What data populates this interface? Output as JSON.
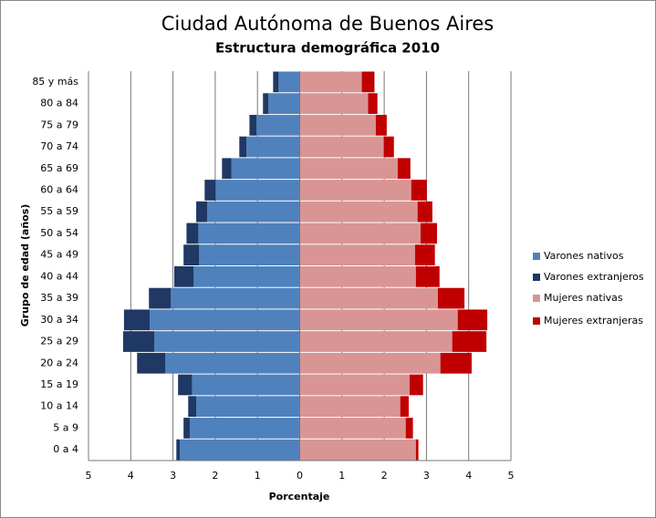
{
  "chart_data": {
    "type": "bar",
    "orientation": "horizontal",
    "stacked": true,
    "title": "Ciudad Autónoma de Buenos Aires",
    "subtitle": "Estructura demográfica 2010",
    "x_label": "Porcentaje",
    "y_label": "Grupo de edad (años)",
    "categories": [
      "0 a 4",
      "5 a 9",
      "10 a 14",
      "15 a 19",
      "20 a 24",
      "25 a 29",
      "30 a 34",
      "35 a 39",
      "40 a 44",
      "45 a 49",
      "50 a 54",
      "55 a 59",
      "60 a 64",
      "65 a 69",
      "70 a 74",
      "75 a 79",
      "80 a 84",
      "85 y más"
    ],
    "series": [
      {
        "name": "Varones nativos",
        "color": "#4f81bd",
        "values": [
          -2.84,
          -2.6,
          -2.45,
          -2.55,
          -3.18,
          -3.44,
          -3.55,
          -3.05,
          -2.51,
          -2.38,
          -2.4,
          -2.19,
          -1.99,
          -1.62,
          -1.26,
          -1.02,
          -0.74,
          -0.5
        ]
      },
      {
        "name": "Varones extranjeros",
        "color": "#1f3864",
        "values": [
          -0.08,
          -0.15,
          -0.19,
          -0.33,
          -0.67,
          -0.74,
          -0.61,
          -0.52,
          -0.46,
          -0.37,
          -0.28,
          -0.26,
          -0.26,
          -0.22,
          -0.17,
          -0.17,
          -0.13,
          -0.13
        ]
      },
      {
        "name": "Mujeres nativas",
        "color": "#d99594",
        "values": [
          2.75,
          2.51,
          2.38,
          2.6,
          3.33,
          3.61,
          3.74,
          3.27,
          2.75,
          2.73,
          2.86,
          2.79,
          2.64,
          2.32,
          1.99,
          1.8,
          1.62,
          1.47
        ]
      },
      {
        "name": "Mujeres extranjeras",
        "color": "#c00000",
        "values": [
          0.06,
          0.17,
          0.2,
          0.32,
          0.74,
          0.81,
          0.7,
          0.63,
          0.56,
          0.47,
          0.39,
          0.35,
          0.37,
          0.3,
          0.24,
          0.26,
          0.22,
          0.3
        ]
      }
    ],
    "xlim": [
      -5,
      5
    ],
    "xticks": [
      {
        "value": -5,
        "label": "5"
      },
      {
        "value": -4,
        "label": "4"
      },
      {
        "value": -3,
        "label": "3"
      },
      {
        "value": -2,
        "label": "2"
      },
      {
        "value": -1,
        "label": "1"
      },
      0,
      1,
      2,
      3,
      4,
      5
    ],
    "grid": true,
    "legend": "right"
  }
}
